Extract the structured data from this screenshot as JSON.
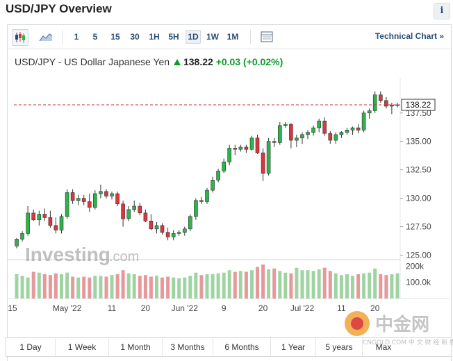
{
  "header": {
    "title": "USD/JPY Overview",
    "info_label": "i"
  },
  "toolbar": {
    "chart_icons": [
      "candlestick-icon",
      "area-chart-icon"
    ],
    "intervals": [
      "1",
      "5",
      "15",
      "30",
      "1H",
      "5H",
      "1D",
      "1W",
      "1M"
    ],
    "active_interval": "1D",
    "table_icon": "table-icon",
    "technical_link": "Technical Chart »"
  },
  "quote": {
    "name": "USD/JPY - US Dollar Japanese Yen",
    "price": "138.22",
    "change": "+0.03",
    "change_pct": "(+0.02%)"
  },
  "watermark": {
    "brand": "Investing",
    "suffix": ".com"
  },
  "ranges": [
    "1 Day",
    "1 Week",
    "1 Month",
    "3 Months",
    "6 Months",
    "1 Year",
    "5 years",
    "Max"
  ],
  "corner_logo": {
    "text": "中金网",
    "sub": "CNGOLD.COM 中 文 财 经 新 媒 体"
  },
  "colors": {
    "up": "#2db34a",
    "down": "#d9363e",
    "up_vol": "#9fd4a2",
    "down_vol": "#e6999b",
    "link": "#2a4d7a"
  },
  "chart_data": {
    "type": "candlestick",
    "price_axis": {
      "ticks": [
        125.0,
        127.5,
        130.0,
        132.5,
        135.0,
        137.5
      ],
      "tick_labels": [
        "125.00",
        "127.50",
        "130.00",
        "132.50",
        "135.00",
        "137.50"
      ],
      "range": [
        124.6,
        140.6
      ]
    },
    "volume_axis": {
      "tick_labels": [
        "200k",
        "100.0k"
      ],
      "ticks": [
        200,
        100
      ],
      "range": [
        0,
        240
      ]
    },
    "x_tick_labels": [
      "15",
      "May '22",
      "11",
      "20",
      "Jun '22",
      "9",
      "20",
      "Jul '22",
      "11",
      "20"
    ],
    "x_tick_index": [
      0,
      9,
      17,
      23,
      30,
      37,
      44,
      51,
      58,
      64
    ],
    "last_price_line": 138.22,
    "last_price_label": "138.22",
    "candles": [
      {
        "o": 125.8,
        "h": 126.5,
        "l": 125.6,
        "c": 126.4
      },
      {
        "o": 126.4,
        "h": 127.1,
        "l": 126.2,
        "c": 126.9
      },
      {
        "o": 126.9,
        "h": 129.3,
        "l": 126.7,
        "c": 128.7
      },
      {
        "o": 128.7,
        "h": 129.0,
        "l": 128.0,
        "c": 128.1
      },
      {
        "o": 128.1,
        "h": 128.9,
        "l": 127.6,
        "c": 128.6
      },
      {
        "o": 128.6,
        "h": 129.1,
        "l": 128.0,
        "c": 128.3
      },
      {
        "o": 128.3,
        "h": 128.9,
        "l": 127.4,
        "c": 127.6
      },
      {
        "o": 127.6,
        "h": 128.3,
        "l": 126.9,
        "c": 127.2
      },
      {
        "o": 127.2,
        "h": 128.6,
        "l": 126.9,
        "c": 128.4
      },
      {
        "o": 128.4,
        "h": 130.8,
        "l": 128.2,
        "c": 130.5
      },
      {
        "o": 130.5,
        "h": 130.8,
        "l": 129.5,
        "c": 129.8
      },
      {
        "o": 129.8,
        "h": 130.3,
        "l": 129.4,
        "c": 130.0
      },
      {
        "o": 130.0,
        "h": 130.3,
        "l": 129.4,
        "c": 129.7
      },
      {
        "o": 129.7,
        "h": 130.4,
        "l": 128.8,
        "c": 129.2
      },
      {
        "o": 129.2,
        "h": 130.7,
        "l": 129.0,
        "c": 130.4
      },
      {
        "o": 130.4,
        "h": 131.2,
        "l": 130.0,
        "c": 130.6
      },
      {
        "o": 130.6,
        "h": 130.8,
        "l": 130.0,
        "c": 130.2
      },
      {
        "o": 130.2,
        "h": 130.6,
        "l": 129.9,
        "c": 130.4
      },
      {
        "o": 130.4,
        "h": 130.6,
        "l": 129.3,
        "c": 129.5
      },
      {
        "o": 129.5,
        "h": 129.8,
        "l": 127.5,
        "c": 128.2
      },
      {
        "o": 128.2,
        "h": 129.3,
        "l": 128.0,
        "c": 129.0
      },
      {
        "o": 129.0,
        "h": 129.8,
        "l": 128.8,
        "c": 129.3
      },
      {
        "o": 129.3,
        "h": 129.6,
        "l": 128.5,
        "c": 128.7
      },
      {
        "o": 128.7,
        "h": 129.0,
        "l": 127.9,
        "c": 128.0
      },
      {
        "o": 128.0,
        "h": 128.6,
        "l": 127.2,
        "c": 127.3
      },
      {
        "o": 127.3,
        "h": 127.9,
        "l": 126.9,
        "c": 127.6
      },
      {
        "o": 127.6,
        "h": 127.8,
        "l": 126.8,
        "c": 127.0
      },
      {
        "o": 127.0,
        "h": 127.4,
        "l": 126.3,
        "c": 126.6
      },
      {
        "o": 126.6,
        "h": 127.2,
        "l": 126.3,
        "c": 126.9
      },
      {
        "o": 126.9,
        "h": 127.2,
        "l": 126.7,
        "c": 127.0
      },
      {
        "o": 127.0,
        "h": 127.5,
        "l": 126.7,
        "c": 127.3
      },
      {
        "o": 127.3,
        "h": 128.6,
        "l": 127.1,
        "c": 128.4
      },
      {
        "o": 128.4,
        "h": 130.0,
        "l": 128.1,
        "c": 129.8
      },
      {
        "o": 129.8,
        "h": 130.1,
        "l": 129.5,
        "c": 129.7
      },
      {
        "o": 129.7,
        "h": 130.9,
        "l": 129.5,
        "c": 130.7
      },
      {
        "o": 130.7,
        "h": 131.9,
        "l": 130.5,
        "c": 131.6
      },
      {
        "o": 131.6,
        "h": 132.6,
        "l": 131.4,
        "c": 132.4
      },
      {
        "o": 132.4,
        "h": 133.5,
        "l": 132.2,
        "c": 133.2
      },
      {
        "o": 133.2,
        "h": 134.7,
        "l": 132.9,
        "c": 134.4
      },
      {
        "o": 134.4,
        "h": 134.7,
        "l": 133.8,
        "c": 134.3
      },
      {
        "o": 134.3,
        "h": 134.7,
        "l": 134.1,
        "c": 134.5
      },
      {
        "o": 134.5,
        "h": 134.7,
        "l": 134.0,
        "c": 134.3
      },
      {
        "o": 134.3,
        "h": 135.5,
        "l": 134.2,
        "c": 135.3
      },
      {
        "o": 135.3,
        "h": 135.6,
        "l": 133.9,
        "c": 134.0
      },
      {
        "o": 134.0,
        "h": 134.4,
        "l": 131.5,
        "c": 132.2
      },
      {
        "o": 132.2,
        "h": 135.3,
        "l": 132.0,
        "c": 135.0
      },
      {
        "o": 135.0,
        "h": 135.3,
        "l": 134.5,
        "c": 134.9
      },
      {
        "o": 134.9,
        "h": 136.7,
        "l": 134.7,
        "c": 136.4
      },
      {
        "o": 136.4,
        "h": 136.7,
        "l": 136.2,
        "c": 136.5
      },
      {
        "o": 136.5,
        "h": 136.6,
        "l": 134.4,
        "c": 135.1
      },
      {
        "o": 135.1,
        "h": 135.6,
        "l": 134.5,
        "c": 135.3
      },
      {
        "o": 135.3,
        "h": 135.8,
        "l": 134.8,
        "c": 135.6
      },
      {
        "o": 135.6,
        "h": 136.0,
        "l": 135.2,
        "c": 135.8
      },
      {
        "o": 135.8,
        "h": 136.4,
        "l": 135.5,
        "c": 136.2
      },
      {
        "o": 136.2,
        "h": 137.0,
        "l": 135.8,
        "c": 136.8
      },
      {
        "o": 136.8,
        "h": 137.1,
        "l": 135.5,
        "c": 135.7
      },
      {
        "o": 135.7,
        "h": 135.9,
        "l": 134.8,
        "c": 135.1
      },
      {
        "o": 135.1,
        "h": 135.8,
        "l": 134.8,
        "c": 135.6
      },
      {
        "o": 135.6,
        "h": 135.9,
        "l": 135.3,
        "c": 135.8
      },
      {
        "o": 135.8,
        "h": 136.2,
        "l": 135.6,
        "c": 136.0
      },
      {
        "o": 136.0,
        "h": 136.3,
        "l": 135.6,
        "c": 136.2
      },
      {
        "o": 136.2,
        "h": 136.5,
        "l": 135.7,
        "c": 136.0
      },
      {
        "o": 136.0,
        "h": 137.7,
        "l": 135.8,
        "c": 137.5
      },
      {
        "o": 137.5,
        "h": 137.9,
        "l": 137.0,
        "c": 137.7
      },
      {
        "o": 137.7,
        "h": 139.4,
        "l": 137.5,
        "c": 139.1
      },
      {
        "o": 139.1,
        "h": 139.4,
        "l": 138.4,
        "c": 138.6
      },
      {
        "o": 138.6,
        "h": 138.9,
        "l": 137.9,
        "c": 138.1
      },
      {
        "o": 138.1,
        "h": 138.4,
        "l": 137.4,
        "c": 138.2
      },
      {
        "o": 138.2,
        "h": 138.4,
        "l": 138.0,
        "c": 138.22
      }
    ],
    "volumes": [
      150,
      140,
      130,
      165,
      160,
      150,
      145,
      155,
      150,
      160,
      135,
      130,
      135,
      130,
      140,
      140,
      135,
      145,
      150,
      175,
      155,
      150,
      140,
      145,
      135,
      140,
      130,
      135,
      130,
      125,
      130,
      140,
      160,
      145,
      150,
      150,
      155,
      160,
      175,
      165,
      170,
      165,
      175,
      195,
      210,
      180,
      185,
      170,
      160,
      155,
      190,
      175,
      175,
      170,
      180,
      190,
      170,
      155,
      145,
      150,
      140,
      150,
      155,
      160,
      185,
      150,
      145,
      150,
      155
    ]
  }
}
